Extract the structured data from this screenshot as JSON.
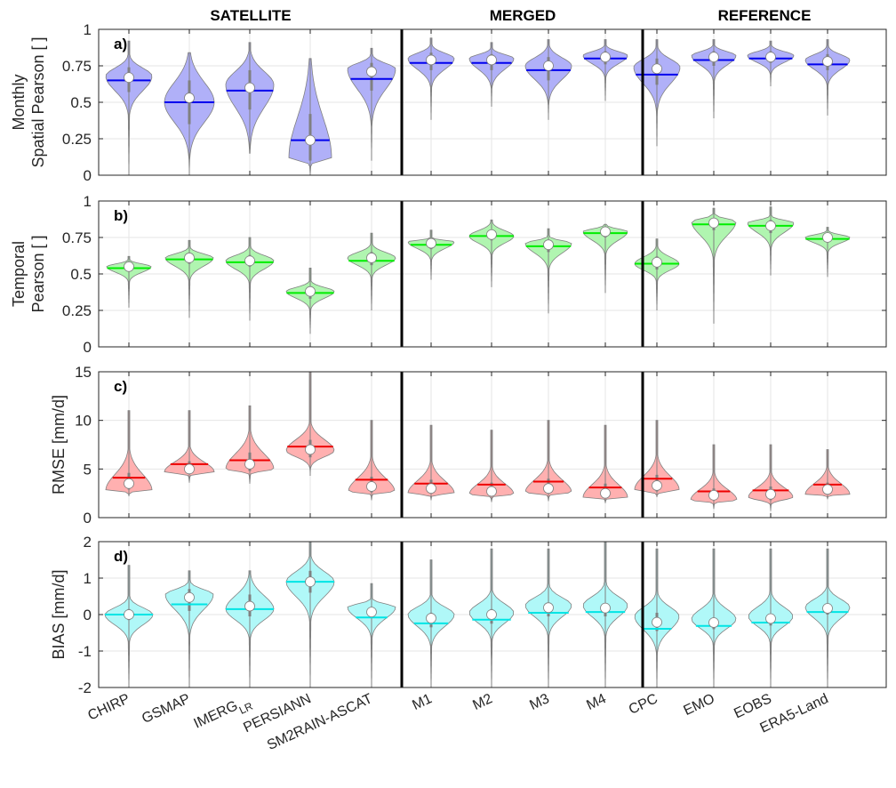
{
  "chart_data": {
    "type": "violin",
    "group_titles": [
      {
        "name": "SATELLITE",
        "from": 0,
        "to": 4
      },
      {
        "name": "MERGED",
        "from": 5,
        "to": 8
      },
      {
        "name": "REFERENCE",
        "from": 9,
        "to": 12
      }
    ],
    "categories": [
      "CHIRP",
      "GSMAP",
      "IMERG",
      "PERSIANN",
      "SM2RAIN-ASCAT",
      "M1",
      "M2",
      "M3",
      "M4",
      "CPC",
      "EMO",
      "EOBS",
      "ERA5-Land"
    ],
    "category_subscripts": {
      "IMERG": "LR"
    },
    "grid": true,
    "panels": [
      {
        "label": "a)",
        "ylabel": [
          "Monthly",
          "Spatial Pearson [ ]"
        ],
        "ylim": [
          0,
          1
        ],
        "yticks": [
          0,
          0.25,
          0.5,
          0.75,
          1
        ],
        "ytick_labels": [
          "0",
          "0.25",
          "0.5",
          "0.75",
          "1"
        ],
        "fill": "#b0b0f8",
        "line_color": "#0000ee",
        "mean": [
          0.65,
          0.5,
          0.58,
          0.24,
          0.66,
          0.77,
          0.77,
          0.72,
          0.8,
          0.69,
          0.79,
          0.8,
          0.76
        ],
        "median": [
          0.67,
          0.53,
          0.6,
          0.24,
          0.71,
          0.79,
          0.79,
          0.75,
          0.81,
          0.73,
          0.81,
          0.81,
          0.78
        ],
        "min": [
          0.0,
          0.0,
          0.15,
          0.0,
          0.1,
          0.38,
          0.47,
          0.38,
          0.51,
          0.2,
          0.39,
          0.61,
          0.41
        ],
        "max": [
          0.92,
          0.84,
          0.91,
          0.8,
          0.87,
          0.94,
          0.91,
          0.93,
          0.93,
          0.93,
          0.93,
          0.92,
          0.93
        ],
        "q1": [
          0.57,
          0.35,
          0.45,
          0.1,
          0.58,
          0.72,
          0.72,
          0.65,
          0.76,
          0.62,
          0.75,
          0.77,
          0.72
        ],
        "q3": [
          0.74,
          0.65,
          0.72,
          0.42,
          0.77,
          0.84,
          0.83,
          0.81,
          0.85,
          0.8,
          0.85,
          0.85,
          0.83
        ],
        "width_peak": [
          0.68,
          0.5,
          0.62,
          0.12,
          0.73,
          0.8,
          0.8,
          0.75,
          0.82,
          0.74,
          0.82,
          0.82,
          0.79
        ]
      },
      {
        "label": "b)",
        "ylabel": [
          "Temporal",
          "Pearson [ ]"
        ],
        "ylim": [
          0,
          1
        ],
        "yticks": [
          0,
          0.25,
          0.5,
          0.75,
          1
        ],
        "ytick_labels": [
          "0",
          "0.25",
          "0.5",
          "0.75",
          "1"
        ],
        "fill": "#b0f5b0",
        "line_color": "#00ee00",
        "mean": [
          0.54,
          0.6,
          0.58,
          0.37,
          0.59,
          0.7,
          0.76,
          0.69,
          0.78,
          0.57,
          0.84,
          0.83,
          0.74
        ],
        "median": [
          0.55,
          0.61,
          0.59,
          0.38,
          0.61,
          0.71,
          0.77,
          0.7,
          0.79,
          0.58,
          0.85,
          0.83,
          0.75
        ],
        "min": [
          0.27,
          0.2,
          0.18,
          0.09,
          0.25,
          0.46,
          0.41,
          0.23,
          0.37,
          0.25,
          0.16,
          0.49,
          0.48
        ],
        "max": [
          0.62,
          0.73,
          0.75,
          0.54,
          0.78,
          0.8,
          0.87,
          0.81,
          0.84,
          0.74,
          0.95,
          0.96,
          0.82
        ],
        "q1": [
          0.52,
          0.57,
          0.55,
          0.33,
          0.56,
          0.67,
          0.73,
          0.65,
          0.75,
          0.53,
          0.8,
          0.78,
          0.72
        ],
        "q3": [
          0.57,
          0.64,
          0.63,
          0.41,
          0.65,
          0.73,
          0.8,
          0.73,
          0.81,
          0.62,
          0.88,
          0.87,
          0.77
        ],
        "width_peak": [
          0.55,
          0.61,
          0.59,
          0.38,
          0.61,
          0.72,
          0.76,
          0.71,
          0.79,
          0.57,
          0.86,
          0.85,
          0.75
        ]
      },
      {
        "label": "c)",
        "ylabel": [
          "RMSE [mm/d]"
        ],
        "ylim": [
          0,
          15
        ],
        "yticks": [
          0,
          5,
          10,
          15
        ],
        "ytick_labels": [
          "0",
          "5",
          "10",
          "15"
        ],
        "fill": "#ffb0b0",
        "line_color": "#ee0000",
        "mean": [
          4.1,
          5.5,
          5.9,
          7.3,
          3.9,
          3.5,
          3.4,
          3.7,
          3.1,
          4.0,
          2.7,
          2.8,
          3.4
        ],
        "median": [
          3.5,
          5.0,
          5.5,
          7.0,
          3.2,
          3.0,
          2.7,
          3.0,
          2.5,
          3.3,
          2.3,
          2.4,
          2.9
        ],
        "min": [
          2.2,
          3.6,
          3.5,
          4.3,
          1.8,
          1.8,
          1.6,
          1.7,
          1.5,
          2.1,
          0.9,
          0.7,
          1.9
        ],
        "max": [
          11.0,
          11.0,
          11.5,
          15.0,
          10.0,
          9.5,
          9.0,
          10.0,
          9.5,
          10.0,
          7.5,
          7.5,
          7.0
        ],
        "q1": [
          2.9,
          4.6,
          4.8,
          6.2,
          2.6,
          2.5,
          2.3,
          2.5,
          2.1,
          2.7,
          1.8,
          1.8,
          2.4
        ],
        "q3": [
          4.6,
          5.8,
          6.7,
          8.0,
          4.2,
          3.9,
          3.6,
          4.0,
          3.5,
          4.4,
          3.0,
          3.2,
          3.6
        ],
        "width_peak": [
          2.8,
          4.7,
          5.0,
          6.9,
          2.7,
          2.5,
          2.4,
          2.6,
          2.1,
          2.9,
          1.8,
          2.1,
          2.4
        ]
      },
      {
        "label": "d)",
        "ylabel": [
          "BIAS [mm/d]"
        ],
        "ylim": [
          -2,
          2
        ],
        "yticks": [
          -2,
          -1,
          0,
          1,
          2
        ],
        "ytick_labels": [
          "-2",
          "-1",
          "0",
          "1",
          "2"
        ],
        "fill": "#b0f8f8",
        "line_color": "#00e5e5",
        "mean": [
          0.0,
          0.28,
          0.15,
          0.9,
          -0.08,
          -0.24,
          -0.14,
          0.05,
          0.07,
          -0.39,
          -0.31,
          -0.22,
          0.07
        ],
        "median": [
          0.0,
          0.47,
          0.23,
          0.9,
          0.07,
          -0.1,
          0.0,
          0.19,
          0.18,
          -0.21,
          -0.22,
          -0.11,
          0.17
        ],
        "min": [
          -2.0,
          -2.0,
          -2.0,
          -2.0,
          -2.0,
          -2.0,
          -2.0,
          -2.0,
          -2.0,
          -2.0,
          -2.0,
          -2.0,
          -2.0
        ],
        "max": [
          1.35,
          1.2,
          1.2,
          2.0,
          0.85,
          1.5,
          1.8,
          1.8,
          2.0,
          1.8,
          1.8,
          1.8,
          1.8
        ],
        "q1": [
          -0.15,
          0.1,
          -0.05,
          0.6,
          -0.1,
          -0.35,
          -0.25,
          -0.05,
          -0.05,
          -0.45,
          -0.4,
          -0.3,
          0.0
        ],
        "q3": [
          0.15,
          0.7,
          0.55,
          1.2,
          0.15,
          0.05,
          0.15,
          0.3,
          0.3,
          0.05,
          -0.1,
          0.0,
          0.25
        ],
        "width_peak": [
          0.0,
          0.55,
          0.15,
          0.9,
          0.2,
          0.0,
          0.05,
          0.25,
          0.25,
          -0.05,
          -0.12,
          -0.05,
          0.2
        ]
      }
    ]
  }
}
